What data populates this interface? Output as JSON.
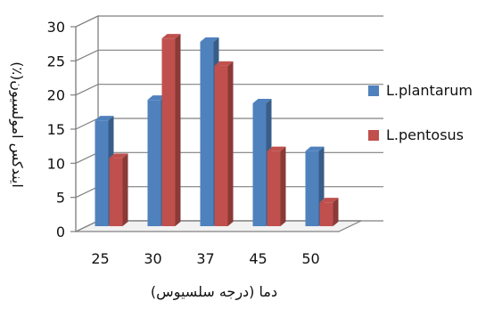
{
  "chart_data": {
    "type": "bar",
    "categories": [
      "25",
      "30",
      "37",
      "45",
      "50"
    ],
    "series": [
      {
        "name": "L.plantarum",
        "values": [
          15.5,
          18.5,
          27,
          18,
          11
        ],
        "color": "#4F81BD"
      },
      {
        "name": "L.pentosus",
        "values": [
          10,
          27.5,
          23.5,
          11,
          3.5
        ],
        "color": "#C0504D"
      }
    ],
    "xlabel": "دما (درجه سلسیوس)",
    "ylabel": "ایندکس امولسیون(٪)",
    "ylim": [
      0,
      30
    ],
    "yticks": [
      "0",
      "5",
      "10",
      "15",
      "20",
      "25",
      "30"
    ],
    "grid": true,
    "legend_position": "right",
    "style": "3d-clustered-column"
  }
}
